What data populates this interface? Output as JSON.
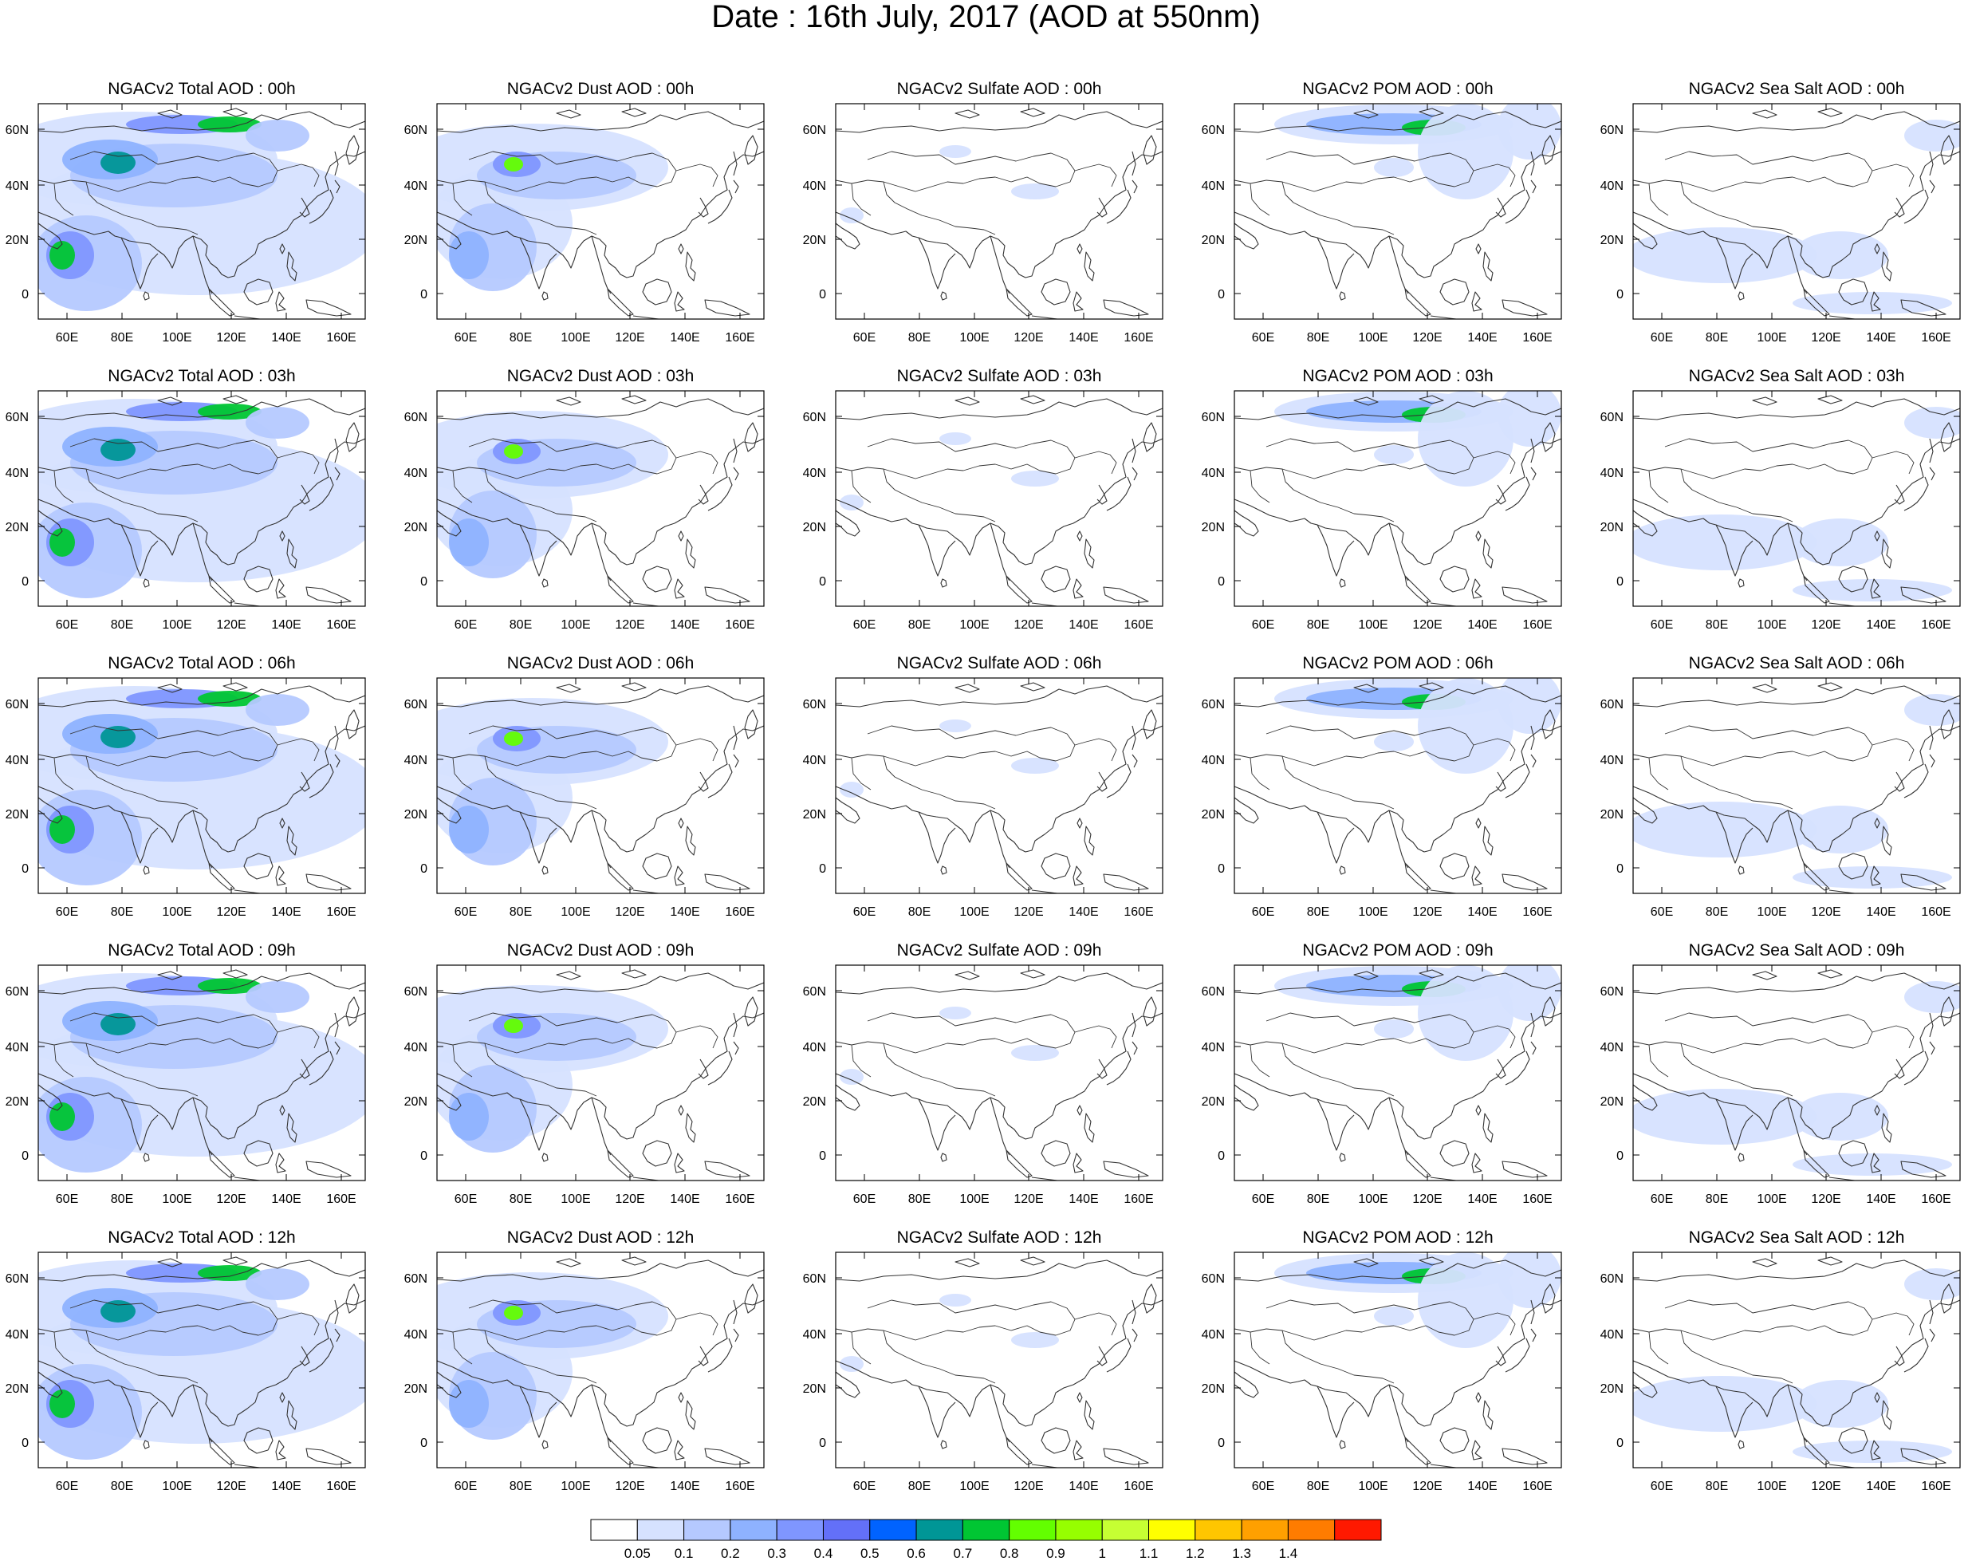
{
  "title": "Date : 16th July, 2017 (AOD at 550nm)",
  "panels": [
    [
      "NGACv2 Total AOD : 00h",
      "NGACv2 Dust AOD : 00h",
      "NGACv2 Sulfate AOD : 00h",
      "NGACv2 POM AOD : 00h",
      "NGACv2 Sea Salt AOD : 00h"
    ],
    [
      "NGACv2 Total AOD : 03h",
      "NGACv2 Dust AOD : 03h",
      "NGACv2 Sulfate AOD : 03h",
      "NGACv2 POM AOD : 03h",
      "NGACv2 Sea Salt AOD : 03h"
    ],
    [
      "NGACv2 Total AOD : 06h",
      "NGACv2 Dust AOD : 06h",
      "NGACv2 Sulfate AOD : 06h",
      "NGACv2 POM AOD : 06h",
      "NGACv2 Sea Salt AOD : 06h"
    ],
    [
      "NGACv2 Total AOD : 09h",
      "NGACv2 Dust AOD : 09h",
      "NGACv2 Sulfate AOD : 09h",
      "NGACv2 POM AOD : 09h",
      "NGACv2 Sea Salt  AOD : 09h"
    ],
    [
      "NGACv2 Total AOD  : 12h",
      "NGACv2 Dust AOD : 12h",
      "NGACv2 Sulfate AOD : 12h",
      "NGACv2 POM  AOD : 12h",
      "NGACv2 Sea Salt  AOD : 12h"
    ]
  ],
  "x_ticks": [
    "60E",
    "80E",
    "100E",
    "120E",
    "140E",
    "160E"
  ],
  "y_ticks": [
    "60N",
    "40N",
    "20N",
    "0"
  ],
  "colorbar": {
    "labels": [
      "0.05",
      "0.1",
      "0.2",
      "0.3",
      "0.4",
      "0.5",
      "0.6",
      "0.7",
      "0.8",
      "0.9",
      "1",
      "1.1",
      "1.2",
      "1.3",
      "1.4"
    ],
    "colors": [
      "#ffffff",
      "#d6e2ff",
      "#b5c9ff",
      "#8eb2ff",
      "#7f96ff",
      "#6370f8",
      "#0063ff",
      "#009696",
      "#00c633",
      "#63ff00",
      "#96ff00",
      "#c6ff33",
      "#ffff00",
      "#ffc600",
      "#ffa000",
      "#ff7c00",
      "#ff1900"
    ]
  }
}
